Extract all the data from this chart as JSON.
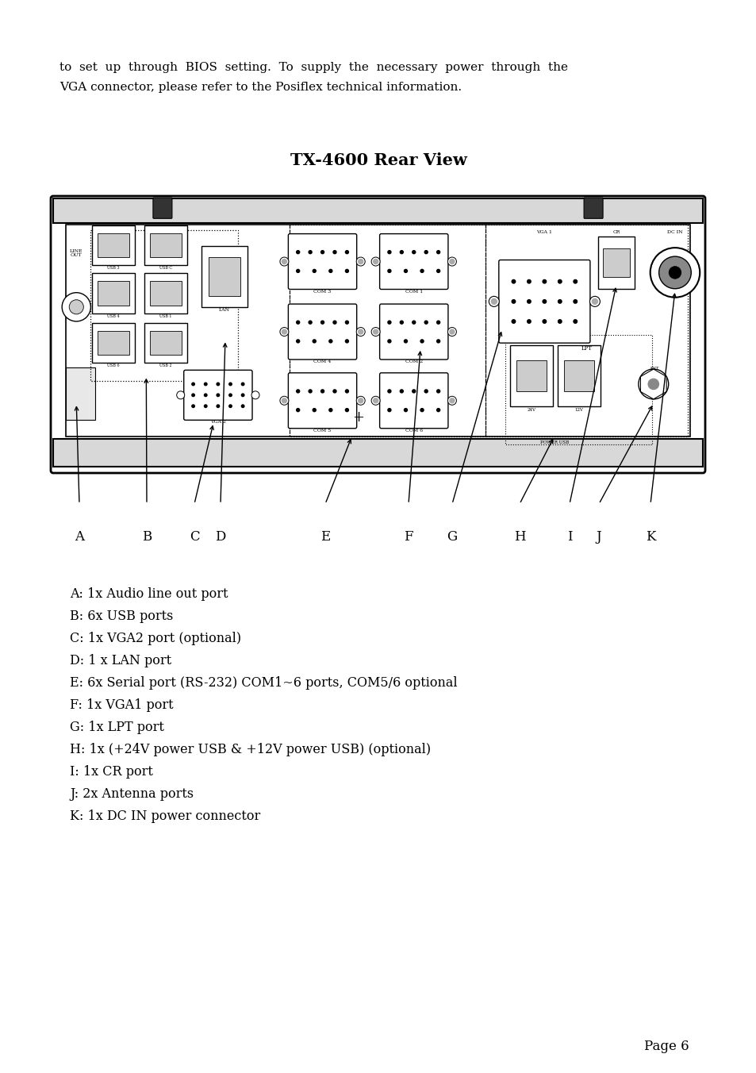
{
  "bg_color": "#ffffff",
  "intro_text_line1": "to  set  up  through  BIOS  setting.  To  supply  the  necessary  power  through  the",
  "intro_text_line2": "VGA connector, please refer to the Posiflex technical information.",
  "diagram_title": "TX-4600 Rear View",
  "descriptions": [
    "A: 1x Audio line out port",
    "B: 6x USB ports",
    "C: 1x VGA2 port (optional)",
    "D: 1 x LAN port",
    "E: 6x Serial port (RS-232) COM1~6 ports, COM5/6 optional",
    "F: 1x VGA1 port",
    "G: 1x LPT port",
    "H: 1x (+24V power USB & +12V power USB) (optional)",
    "I: 1x CR port",
    "J: 2x Antenna ports",
    "K: 1x DC IN power connector"
  ],
  "page_number": "Page 6",
  "intro_fontsize": 11.0,
  "title_fontsize": 15,
  "desc_fontsize": 11.5,
  "label_fontsize": 12
}
